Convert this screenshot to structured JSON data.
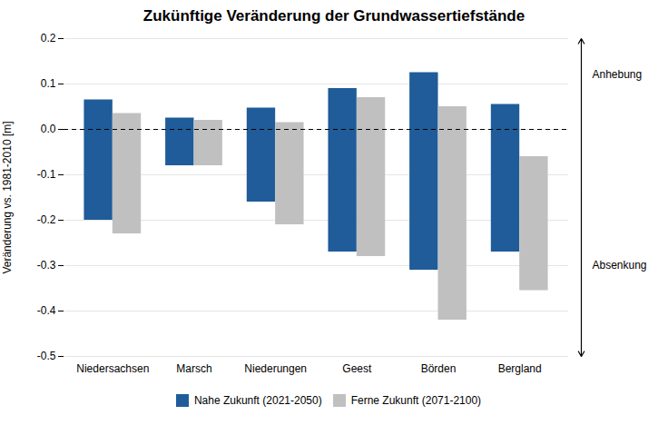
{
  "chart_data": {
    "type": "bar",
    "title": "Zukünftige Veränderung der Grundwassertiefstände",
    "ylabel": "Veränderung vs. 1981-2010 [m]",
    "categories": [
      "Niedersachsen",
      "Marsch",
      "Niederungen",
      "Geest",
      "Börden",
      "Bergland"
    ],
    "series": [
      {
        "name": "Nahe Zukunft (2021-2050)",
        "color": "#1F5C99",
        "values": [
          [
            -0.2,
            0.065
          ],
          [
            -0.08,
            0.025
          ],
          [
            -0.16,
            0.047
          ],
          [
            -0.27,
            0.09
          ],
          [
            -0.31,
            0.125
          ],
          [
            -0.27,
            0.055
          ]
        ]
      },
      {
        "name": "Ferne Zukunft (2071-2100)",
        "color": "#C0C0C0",
        "values": [
          [
            -0.23,
            0.035
          ],
          [
            -0.08,
            0.02
          ],
          [
            -0.21,
            0.015
          ],
          [
            -0.28,
            0.07
          ],
          [
            -0.42,
            0.05
          ],
          [
            -0.355,
            -0.06
          ]
        ]
      }
    ],
    "ylim": [
      -0.5,
      0.2
    ],
    "yticks": [
      -0.5,
      -0.4,
      -0.3,
      -0.2,
      -0.1,
      {
        "value": 0,
        "label": "0.0"
      },
      0.1,
      0.2
    ],
    "grid": true,
    "legend": "bottom",
    "hline": 0,
    "annotations": [
      {
        "text": "Anhebung",
        "y": 0.12
      },
      {
        "text": "Absenkung",
        "y": -0.3
      }
    ]
  }
}
